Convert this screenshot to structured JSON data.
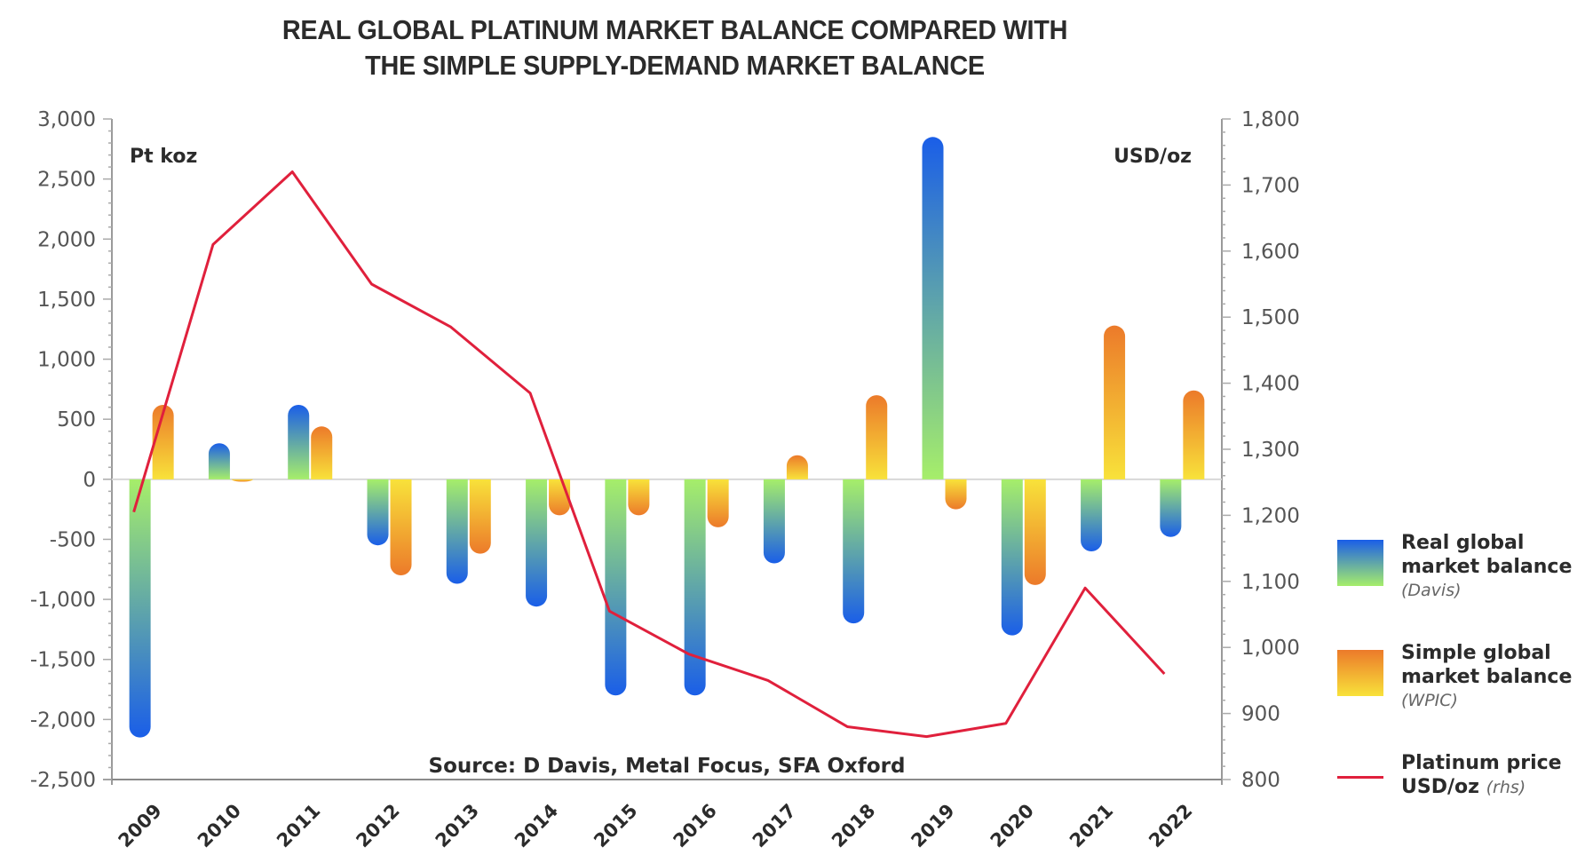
{
  "chart_data": {
    "type": "bar",
    "title_lines": [
      "REAL GLOBAL PLATINUM MARKET BALANCE COMPARED WITH",
      "THE SIMPLE SUPPLY-DEMAND MARKET BALANCE"
    ],
    "categories": [
      "2009",
      "2010",
      "2011",
      "2012",
      "2013",
      "2014",
      "2015",
      "2016",
      "2017",
      "2018",
      "2019",
      "2020",
      "2021",
      "2022"
    ],
    "series": [
      {
        "name": "Real global market balance (Davis)",
        "kind": "bar",
        "axis": "left",
        "gradient": [
          "#1a5ee8",
          "#a6ee6a"
        ],
        "values": [
          -2150,
          300,
          620,
          -550,
          -870,
          -1060,
          -1800,
          -1800,
          -700,
          -1200,
          2850,
          -1300,
          -600,
          -480
        ]
      },
      {
        "name": "Simple global market balance (WPIC)",
        "kind": "bar",
        "axis": "left",
        "gradient": [
          "#ec7a2a",
          "#f8e23a"
        ],
        "values": [
          620,
          -20,
          440,
          -800,
          -620,
          -300,
          -300,
          -400,
          200,
          700,
          -250,
          -880,
          1280,
          740
        ]
      },
      {
        "name": "Platinum price USD/oz (rhs)",
        "kind": "line",
        "axis": "right",
        "color": "#e0203c",
        "values": [
          1205,
          1610,
          1720,
          1550,
          1485,
          1385,
          1055,
          990,
          950,
          880,
          865,
          885,
          1090,
          960
        ]
      }
    ],
    "left_axis": {
      "label": "Pt koz",
      "ylim": [
        -2500,
        3000
      ],
      "ticks": [
        -2500,
        -2000,
        -1500,
        -1000,
        -500,
        0,
        500,
        1000,
        1500,
        2000,
        2500,
        3000
      ],
      "tick_labels": [
        "-2,500",
        "-2,000",
        "-1,500",
        "-1,000",
        "-500",
        "0",
        "500",
        "1,000",
        "1,500",
        "2,000",
        "2,500",
        "3,000"
      ]
    },
    "right_axis": {
      "label": "USD/oz",
      "ylim": [
        800,
        1800
      ],
      "ticks": [
        800,
        900,
        1000,
        1100,
        1200,
        1300,
        1400,
        1500,
        1600,
        1700,
        1800
      ],
      "tick_labels": [
        "800",
        "900",
        "1,000",
        "1,100",
        "1,200",
        "1,300",
        "1,400",
        "1,500",
        "1,600",
        "1,700",
        "1,800"
      ]
    },
    "source": "Source: D Davis, Metal Focus, SFA Oxford",
    "grid": false,
    "legend_position": "right",
    "legend": [
      {
        "line1": "Real global",
        "line2": "market balance",
        "sub": "(Davis)"
      },
      {
        "line1": "Simple global",
        "line2": "market balance",
        "sub": "(WPIC)"
      },
      {
        "line1": "Platinum price",
        "line2": "USD/oz",
        "sub": "(rhs)"
      }
    ]
  }
}
